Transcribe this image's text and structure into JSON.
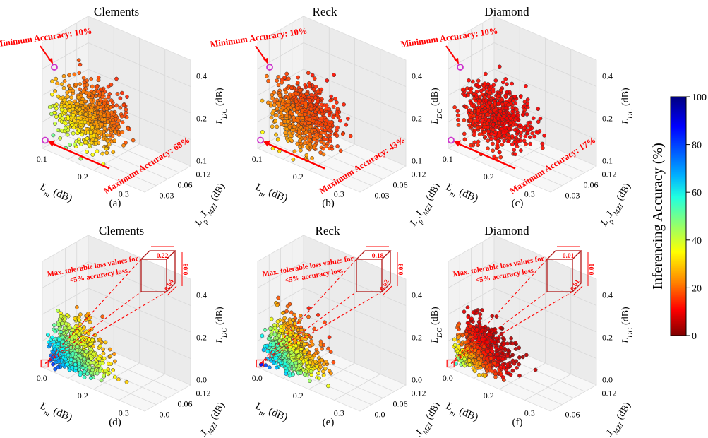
{
  "figure": {
    "colorbar": {
      "label": "Inferencing Accuracy (%)",
      "min": 0,
      "max": 100,
      "ticks": [
        "100",
        "80",
        "60",
        "40",
        "20",
        "0"
      ],
      "colormap": "jet_reversed",
      "colors": [
        "#00007f",
        "#0000ff",
        "#007fff",
        "#00ffff",
        "#7fff7f",
        "#ffff00",
        "#ff7f00",
        "#ff0000",
        "#7f0000"
      ]
    },
    "point_outline_color": "#333333",
    "marker_highlight_color": "#cc33cc",
    "annotation_color": "#ff0000"
  },
  "chart_data": [
    {
      "id": "a",
      "type": "scatter3d",
      "title": "Clements",
      "caption": "(a)",
      "x_label": "L",
      "x_sub": "m",
      "x_unit": "(dB)",
      "y_label": "L",
      "y_sub": "p",
      "y_mid": ".I",
      "y_sub2": "MZI",
      "y_unit": "(dB)",
      "z_label": "L",
      "z_sub": "DC",
      "z_unit": "(dB)",
      "x_ticks": [
        "0.1",
        "0.2",
        "0.3"
      ],
      "y_ticks": [
        "0.03",
        "0.06",
        "0.12"
      ],
      "z_ticks": [
        "0.1",
        "0.2",
        "0.4"
      ],
      "x_range": [
        0.05,
        0.35
      ],
      "y_range": [
        0.02,
        0.14
      ],
      "z_range": [
        0.05,
        0.45
      ],
      "annotations": {
        "min": "Minimum Accuracy: 10%",
        "max": "Maximum Accuracy: 68%"
      },
      "accuracy_range": [
        10,
        68
      ]
    },
    {
      "id": "b",
      "type": "scatter3d",
      "title": "Reck",
      "caption": "(b)",
      "x_label": "L",
      "x_sub": "m",
      "x_unit": "(dB)",
      "y_label": "L",
      "y_sub": "p",
      "y_mid": ".I",
      "y_sub2": "MZI",
      "y_unit": "(dB)",
      "z_label": "L",
      "z_sub": "DC",
      "z_unit": "(dB)",
      "x_ticks": [
        "0.1",
        "0.2",
        "0.3"
      ],
      "y_ticks": [
        "0.03",
        "0.06",
        "0.12"
      ],
      "z_ticks": [
        "0.1",
        "0.2",
        "0.4"
      ],
      "x_range": [
        0.05,
        0.35
      ],
      "y_range": [
        0.02,
        0.14
      ],
      "z_range": [
        0.05,
        0.45
      ],
      "annotations": {
        "min": "Minimum Accuracy: 10%",
        "max": "Maximum Accuracy: 43%"
      },
      "accuracy_range": [
        10,
        43
      ]
    },
    {
      "id": "c",
      "type": "scatter3d",
      "title": "Diamond",
      "caption": "(c)",
      "x_label": "L",
      "x_sub": "m",
      "x_unit": "(dB)",
      "y_label": "L",
      "y_sub": "p",
      "y_mid": ".I",
      "y_sub2": "MZI",
      "y_unit": "(dB)",
      "z_label": "L",
      "z_sub": "DC",
      "z_unit": "(dB)",
      "x_ticks": [
        "0.1",
        "0.2",
        "0.3"
      ],
      "y_ticks": [
        "0.03",
        "0.06",
        "0.12"
      ],
      "z_ticks": [
        "0.1",
        "0.2",
        "0.4"
      ],
      "x_range": [
        0.05,
        0.35
      ],
      "y_range": [
        0.02,
        0.14
      ],
      "z_range": [
        0.05,
        0.45
      ],
      "annotations": {
        "min": "Minimum Accuracy: 10%",
        "max": "Maximum Accuracy: 17%"
      },
      "accuracy_range": [
        10,
        17
      ]
    },
    {
      "id": "d",
      "type": "scatter3d",
      "title": "Clements",
      "caption": "(d)",
      "x_label": "L",
      "x_sub": "m",
      "x_unit": "(dB)",
      "y_label": "L",
      "y_sub": "p",
      "y_mid": ".I",
      "y_sub2": "MZI",
      "y_unit": "(dB)",
      "z_label": "L",
      "z_sub": "DC",
      "z_unit": "(dB)",
      "x_ticks": [
        "0.0",
        "0.2",
        "0.3"
      ],
      "y_ticks": [
        "0.0",
        "0.06",
        "0.12"
      ],
      "z_ticks": [
        "0.0",
        "0.2",
        "0.4"
      ],
      "x_range": [
        0.0,
        0.35
      ],
      "y_range": [
        0.0,
        0.14
      ],
      "z_range": [
        0.0,
        0.45
      ],
      "callout": {
        "text1": "Max. tolerable loss values for",
        "text2": "<5% accuracy loss",
        "lm": "0.22",
        "lp": "0.04",
        "ldc": "0.08"
      },
      "accuracy_range": [
        0,
        100
      ]
    },
    {
      "id": "e",
      "type": "scatter3d",
      "title": "Reck",
      "caption": "(e)",
      "x_label": "L",
      "x_sub": "m",
      "x_unit": "(dB)",
      "y_label": "L",
      "y_sub": "p",
      "y_mid": ".I",
      "y_sub2": "MZI",
      "y_unit": "(dB)",
      "z_label": "L",
      "z_sub": "DC",
      "z_unit": "(dB)",
      "x_ticks": [
        "0.0",
        "0.2",
        "0.3"
      ],
      "y_ticks": [
        "0.0",
        "0.06",
        "0.12"
      ],
      "z_ticks": [
        "0.0",
        "0.2",
        "0.4"
      ],
      "x_range": [
        0.0,
        0.35
      ],
      "y_range": [
        0.0,
        0.14
      ],
      "z_range": [
        0.0,
        0.45
      ],
      "callout": {
        "text1": "Max. tolerable loss values for",
        "text2": "<5% accuracy loss",
        "lm": "0.18",
        "lp": "0.02",
        "ldc": "0.03"
      },
      "accuracy_range": [
        0,
        100
      ]
    },
    {
      "id": "f",
      "type": "scatter3d",
      "title": "Diamond",
      "caption": "(f)",
      "x_label": "L",
      "x_sub": "m",
      "x_unit": "(dB)",
      "y_label": "L",
      "y_sub": "p",
      "y_mid": ".I",
      "y_sub2": "MZI",
      "y_unit": "(dB)",
      "z_label": "L",
      "z_sub": "DC",
      "z_unit": "(dB)",
      "x_ticks": [
        "0.0",
        "0.2",
        "0.3"
      ],
      "y_ticks": [
        "0.06",
        "0.12"
      ],
      "z_ticks": [
        "0.0",
        "0.2",
        "0.4"
      ],
      "x_range": [
        0.0,
        0.35
      ],
      "y_range": [
        0.0,
        0.14
      ],
      "z_range": [
        0.0,
        0.45
      ],
      "callout": {
        "text1": "Max. tolerable loss values for",
        "text2": "<5% accuracy loss",
        "lm": "0.01",
        "lp": "0.01",
        "ldc": "0.01"
      },
      "accuracy_range": [
        0,
        100
      ]
    }
  ]
}
